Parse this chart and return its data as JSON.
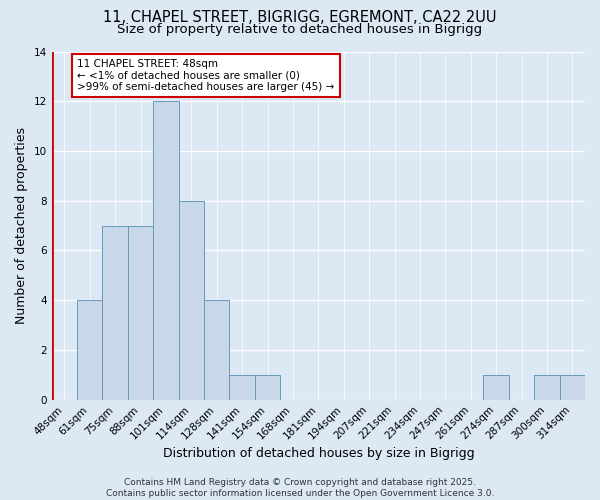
{
  "title_line1": "11, CHAPEL STREET, BIGRIGG, EGREMONT, CA22 2UU",
  "title_line2": "Size of property relative to detached houses in Bigrigg",
  "xlabel": "Distribution of detached houses by size in Bigrigg",
  "ylabel": "Number of detached properties",
  "categories": [
    "48sqm",
    "61sqm",
    "75sqm",
    "88sqm",
    "101sqm",
    "114sqm",
    "128sqm",
    "141sqm",
    "154sqm",
    "168sqm",
    "181sqm",
    "194sqm",
    "207sqm",
    "221sqm",
    "234sqm",
    "247sqm",
    "261sqm",
    "274sqm",
    "287sqm",
    "300sqm",
    "314sqm"
  ],
  "values": [
    0,
    4,
    7,
    7,
    12,
    8,
    4,
    1,
    1,
    0,
    0,
    0,
    0,
    0,
    0,
    0,
    0,
    1,
    0,
    1,
    1
  ],
  "bar_color": "#c8d8e8",
  "bar_edge_color": "#6699bb",
  "highlight_index": 0,
  "highlight_color": "#cc0000",
  "annotation_text": "11 CHAPEL STREET: 48sqm\n← <1% of detached houses are smaller (0)\n>99% of semi-detached houses are larger (45) →",
  "annotation_box_color": "#ffffff",
  "annotation_box_edge": "#cc0000",
  "ylim": [
    0,
    14
  ],
  "yticks": [
    0,
    2,
    4,
    6,
    8,
    10,
    12,
    14
  ],
  "background_color": "#dde8f5",
  "plot_bg_color": "#dde8f5",
  "footer_text": "Contains HM Land Registry data © Crown copyright and database right 2025.\nContains public sector information licensed under the Open Government Licence 3.0.",
  "title_fontsize": 10.5,
  "subtitle_fontsize": 9.5,
  "axis_label_fontsize": 9,
  "tick_fontsize": 7.5,
  "footer_fontsize": 6.5,
  "annot_fontsize": 7.5
}
